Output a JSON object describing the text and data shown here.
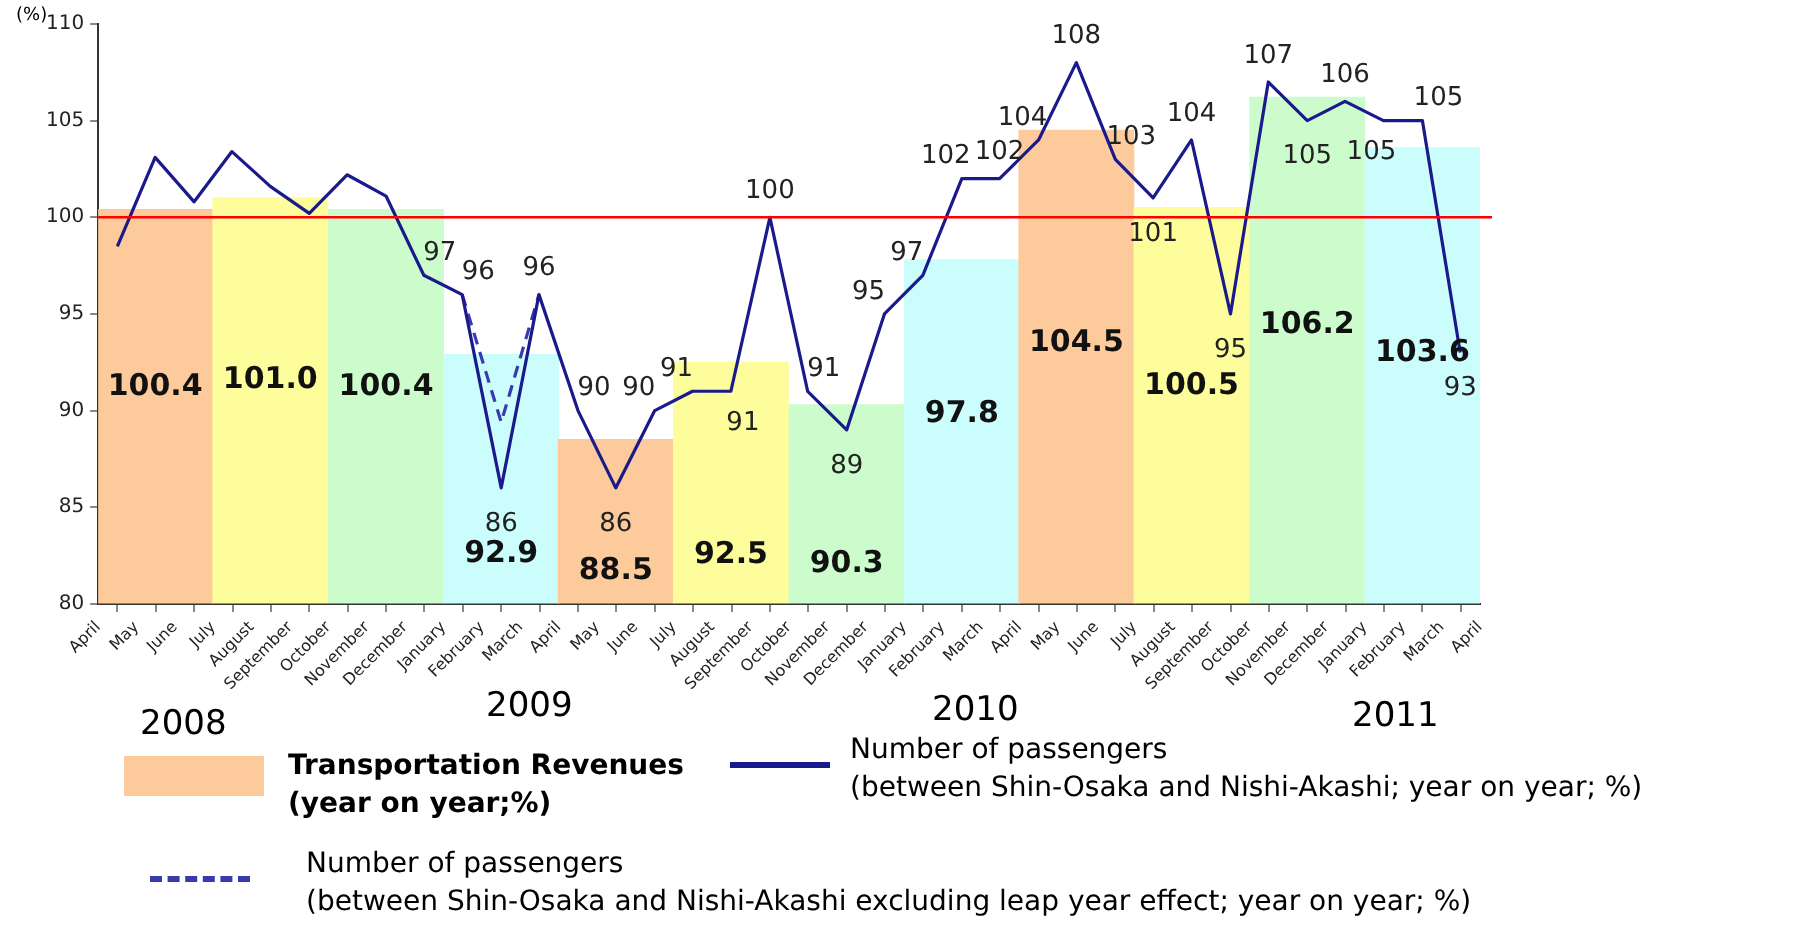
{
  "chart_data": {
    "type": "bar",
    "ylabel": "(%)",
    "xlim": [
      "2008-04-01",
      "2011-04-01"
    ],
    "xticks": [
      {
        "value": "2008-04-01",
        "label": "April"
      },
      {
        "value": "2008-05-01",
        "label": "May"
      },
      {
        "value": "2008-06-01",
        "label": "June"
      },
      {
        "value": "2008-07-01",
        "label": "July"
      },
      {
        "value": "2008-08-01",
        "label": "August"
      },
      {
        "value": "2008-09-01",
        "label": "September"
      },
      {
        "value": "2008-10-01",
        "label": "October"
      },
      {
        "value": "2008-11-01",
        "label": "November"
      },
      {
        "value": "2008-12-01",
        "label": "December"
      },
      {
        "value": "2009-01-01",
        "label": "January"
      },
      {
        "value": "2009-02-01",
        "label": "February"
      },
      {
        "value": "2009-03-01",
        "label": "March"
      },
      {
        "value": "2009-04-01",
        "label": "April"
      },
      {
        "value": "2009-05-01",
        "label": "May"
      },
      {
        "value": "2009-06-01",
        "label": "June"
      },
      {
        "value": "2009-07-01",
        "label": "July"
      },
      {
        "value": "2009-08-01",
        "label": "August"
      },
      {
        "value": "2009-09-01",
        "label": "September"
      },
      {
        "value": "2009-10-01",
        "label": "October"
      },
      {
        "value": "2009-11-01",
        "label": "November"
      },
      {
        "value": "2009-12-01",
        "label": "December"
      },
      {
        "value": "2010-01-01",
        "label": "January"
      },
      {
        "value": "2010-02-01",
        "label": "February"
      },
      {
        "value": "2010-03-01",
        "label": "March"
      },
      {
        "value": "2010-04-01",
        "label": "April"
      },
      {
        "value": "2010-05-01",
        "label": "May"
      },
      {
        "value": "2010-06-01",
        "label": "June"
      },
      {
        "value": "2010-07-01",
        "label": "July"
      },
      {
        "value": "2010-08-01",
        "label": "August"
      },
      {
        "value": "2010-09-01",
        "label": "September"
      },
      {
        "value": "2010-10-01",
        "label": "October"
      },
      {
        "value": "2010-11-01",
        "label": "November"
      },
      {
        "value": "2010-12-01",
        "label": "December"
      },
      {
        "value": "2011-01-01",
        "label": "January"
      },
      {
        "value": "2011-02-01",
        "label": "February"
      },
      {
        "value": "2011-03-01",
        "label": "March"
      },
      {
        "value": "2011-04-01",
        "label": "April"
      }
    ],
    "ylim": [
      80,
      110
    ],
    "yticks": [
      80,
      85,
      90,
      95,
      100,
      105,
      110
    ],
    "grid": false,
    "legend": "bottom",
    "ref_lines": [
      {
        "axis": "y",
        "value": 100,
        "color": "#ff0000"
      }
    ],
    "annotations": [
      "2008",
      "2009",
      "2010",
      "2011"
    ],
    "series": [
      {
        "name": "Transportation Revenues\n(year on year;%)",
        "x": [
          "2008-05-16",
          "2008-08-16",
          "2008-11-16",
          "2009-02-15",
          "2009-05-16",
          "2009-08-16",
          "2009-11-16",
          "2010-02-15",
          "2010-05-16",
          "2010-08-16",
          "2010-11-16",
          "2011-02-15"
        ],
        "values": [
          100.4,
          101.0,
          100.4,
          92.9,
          88.5,
          92.5,
          90.3,
          97.8,
          104.5,
          100.5,
          106.2,
          103.6
        ],
        "colors": [
          "#fdcb9b",
          "#fdfd9b",
          "#ccfccc",
          "#ccfdfd",
          "#fdcb9b",
          "#fdfd9b",
          "#ccfccc",
          "#ccfdfd",
          "#fdcb9b",
          "#fdfd9b",
          "#ccfccc",
          "#ccfdfd"
        ],
        "value_labels": [
          "100.4",
          "101.0",
          "100.4",
          "92.9",
          "88.5",
          "92.5",
          "90.3",
          "97.8",
          "104.5",
          "100.5",
          "106.2",
          "103.6"
        ]
      },
      {
        "type": "line",
        "name": "Number of passengers\n(between Shin-Osaka and Nishi-Akashi; year on year; %)",
        "color": "#1a1a8c",
        "line_style": "solid",
        "marker": "none",
        "x": [
          "2008-04-16",
          "2008-05-16",
          "2008-06-16",
          "2008-07-16",
          "2008-08-16",
          "2008-09-16",
          "2008-10-16",
          "2008-11-16",
          "2008-12-16",
          "2009-01-16",
          "2009-02-15",
          "2009-03-16",
          "2009-04-16",
          "2009-05-16",
          "2009-06-16",
          "2009-07-16",
          "2009-08-16",
          "2009-09-16",
          "2009-10-16",
          "2009-11-16",
          "2009-12-16",
          "2010-01-16",
          "2010-02-15",
          "2010-03-16",
          "2010-04-16",
          "2010-05-16",
          "2010-06-16",
          "2010-07-16",
          "2010-08-16",
          "2010-09-16",
          "2010-10-16",
          "2010-11-16",
          "2010-12-16",
          "2011-01-16",
          "2011-02-15",
          "2011-03-16"
        ],
        "values": [
          98.5,
          103.1,
          100.8,
          103.4,
          101.6,
          100.2,
          102.2,
          101.1,
          97,
          96,
          86,
          96,
          90,
          86,
          90,
          91,
          91,
          100,
          91,
          89,
          95,
          97,
          102,
          102,
          104,
          108,
          103,
          101,
          104,
          95,
          107,
          105,
          106,
          105,
          105,
          93
        ],
        "value_labels": [
          null,
          null,
          null,
          null,
          null,
          null,
          null,
          null,
          "97",
          "96",
          "86",
          "96",
          "90",
          "86",
          "90",
          "91",
          "91",
          "100",
          "91",
          "89",
          "95",
          "97",
          "102",
          "102",
          "104",
          "108",
          "103",
          "101",
          "104",
          "95",
          "107",
          "105",
          "106",
          "105",
          "105",
          "93"
        ]
      },
      {
        "type": "line",
        "name": "Number of passengers\n(between Shin-Osaka and Nishi-Akashi excluding leap year effect; year on year; %)",
        "color": "#3a3ab0",
        "line_style": "dashed",
        "marker": "none",
        "x": [
          "2009-01-16",
          "2009-02-15",
          "2009-03-16"
        ],
        "values": [
          96,
          89.4,
          96
        ]
      }
    ]
  }
}
